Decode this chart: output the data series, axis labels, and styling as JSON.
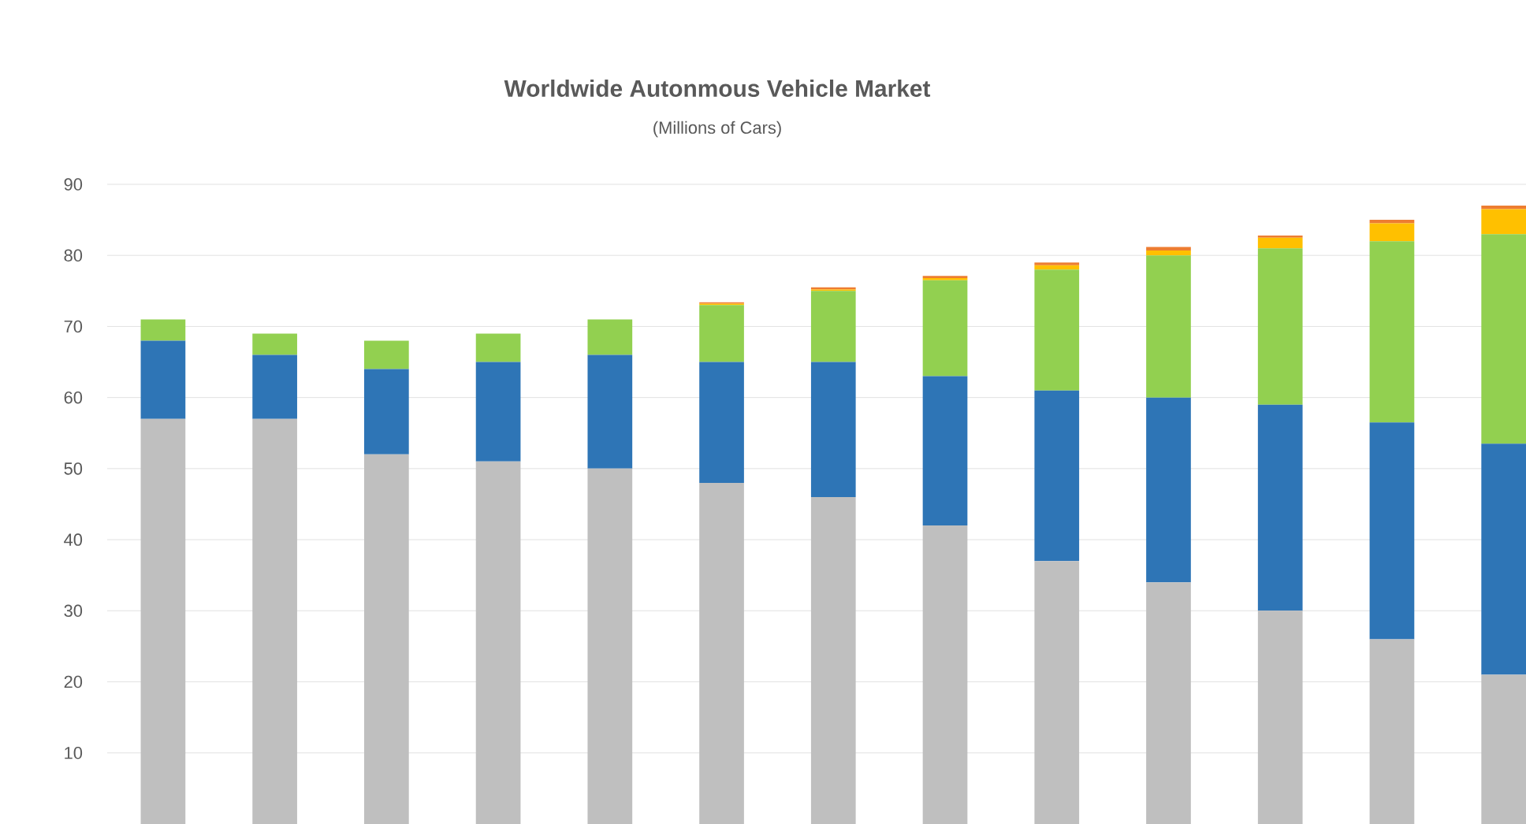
{
  "chart_data": {
    "type": "bar",
    "title": "Worldwide Autonmous Vehicle Market",
    "subtitle": "(Millions of Cars)",
    "categories": [
      null,
      null,
      null,
      null,
      null,
      null,
      null,
      null,
      null,
      null,
      null,
      null,
      null
    ],
    "stacked": true,
    "grid": "y",
    "ylim": [
      0,
      90
    ],
    "yticks": [
      10,
      20,
      30,
      40,
      50,
      60,
      70,
      80,
      90
    ],
    "series": [
      {
        "color": "#bfbfbf",
        "values": [
          57,
          57,
          52,
          51,
          50,
          48,
          46,
          42,
          37,
          34,
          30,
          26,
          21
        ]
      },
      {
        "color": "#2e75b6",
        "values": [
          11,
          9,
          12,
          14,
          16,
          17,
          19,
          21,
          24,
          26,
          29,
          30.5,
          32.5
        ]
      },
      {
        "color": "#92d050",
        "values": [
          3,
          3,
          4,
          4,
          5,
          8,
          10,
          13.5,
          17,
          20,
          22,
          25.5,
          29.5
        ]
      },
      {
        "color": "#ffc000",
        "values": [
          0,
          0,
          0,
          0,
          0,
          0.2,
          0.2,
          0.3,
          0.6,
          0.7,
          1.5,
          2.5,
          3.5
        ]
      },
      {
        "color": "#ed7d31",
        "values": [
          0,
          0,
          0,
          0,
          0,
          0.2,
          0.3,
          0.3,
          0.4,
          0.5,
          0.3,
          0.5,
          0.5
        ]
      }
    ]
  }
}
